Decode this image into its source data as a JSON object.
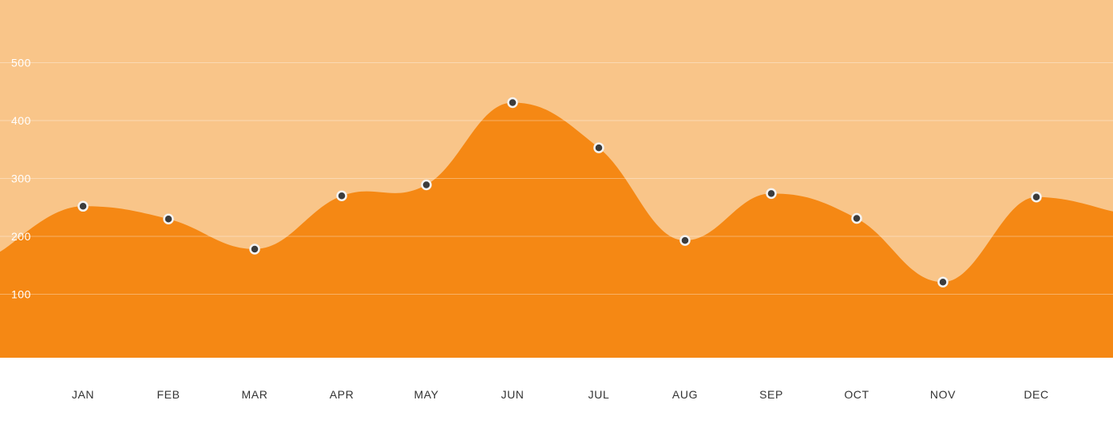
{
  "chart_data": {
    "type": "area",
    "categories": [
      "JAN",
      "FEB",
      "MAR",
      "APR",
      "MAY",
      "JUN",
      "JUL",
      "AUG",
      "SEP",
      "OCT",
      "NOV",
      "DEC"
    ],
    "series": [
      {
        "values": [
          252,
          230,
          178,
          270,
          289,
          431,
          353,
          193,
          274,
          231,
          121,
          268
        ]
      }
    ],
    "y_ticks": [
      100,
      200,
      300,
      400,
      500
    ],
    "ylim": [
      0,
      600
    ],
    "grid": true,
    "legend": "none",
    "colors": {
      "background": "#f9c589",
      "area_fill": "#f58814",
      "marker_fill": "#3c3c3c",
      "marker_stroke": "#f4f4f4",
      "gridline": "#ffffff",
      "y_tick_text": "#ffffff",
      "x_tick_text": "#333333",
      "footer_background": "#ffffff"
    }
  }
}
